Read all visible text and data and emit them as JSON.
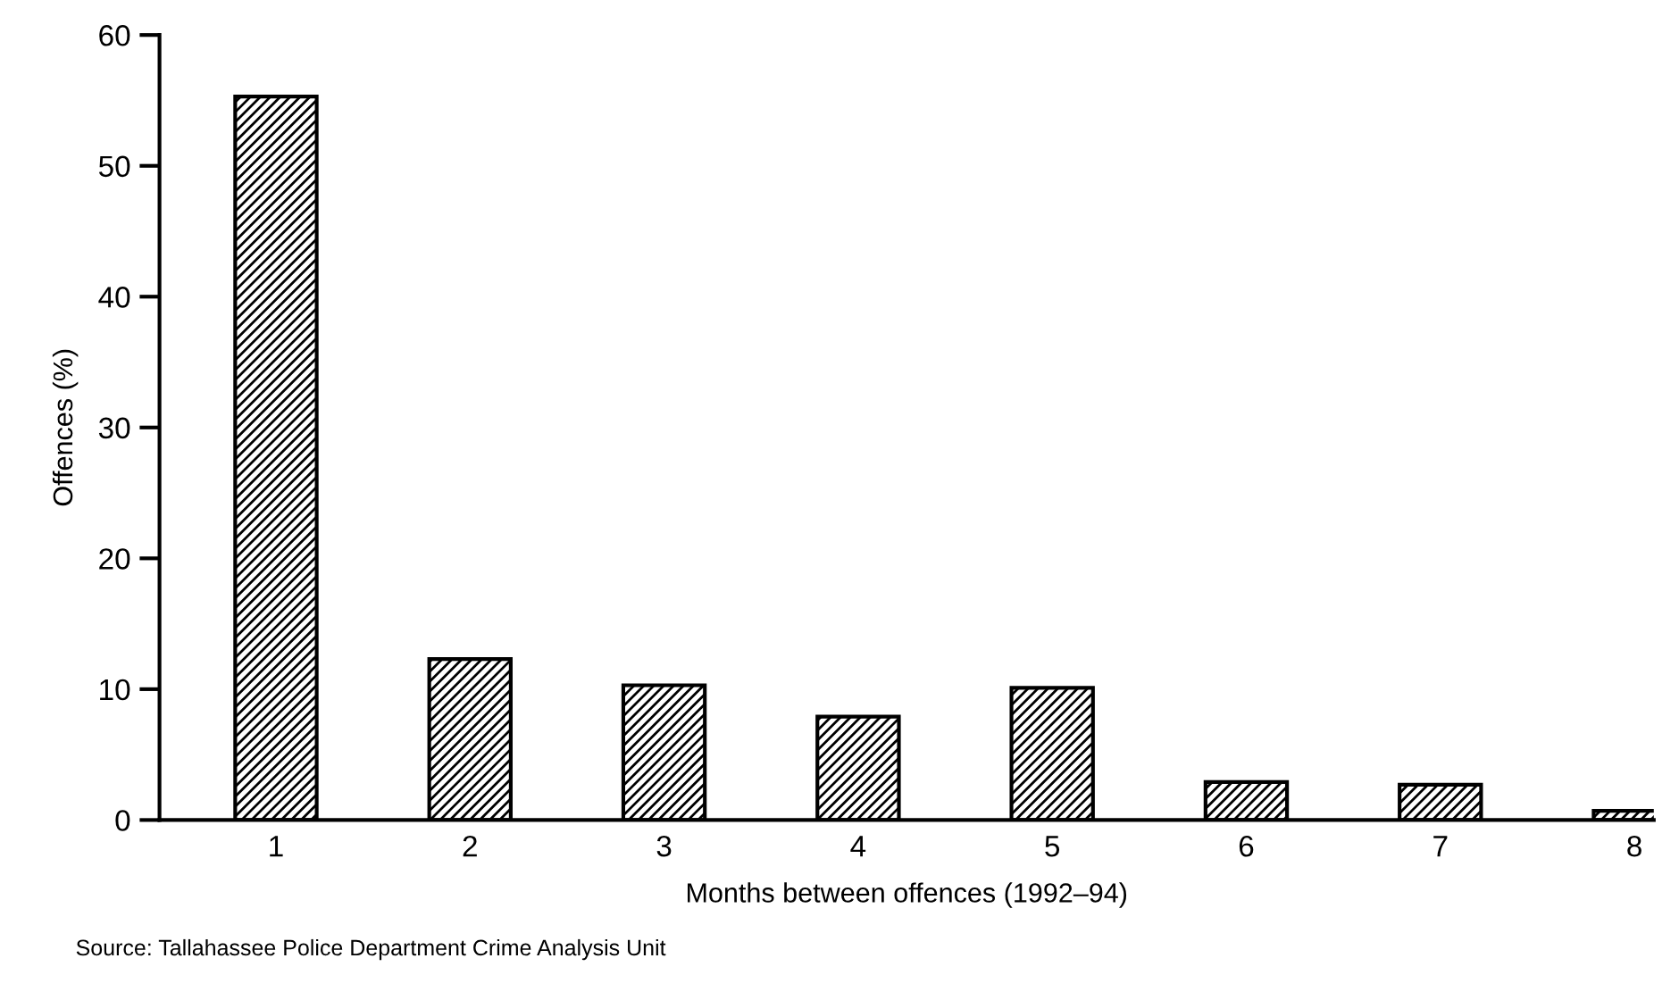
{
  "chart_data": {
    "type": "bar",
    "xlabel": "Months between offences (1992–94)",
    "ylabel": "Offences (%)",
    "categories": [
      "1",
      "2",
      "3",
      "4",
      "5",
      "6",
      "7",
      "8"
    ],
    "values": [
      55.3,
      12.3,
      10.3,
      7.9,
      10.1,
      2.9,
      2.7,
      0.7
    ],
    "color": "#000000",
    "ylim": [
      0,
      60
    ],
    "yticks": [
      0,
      10,
      20,
      30,
      40,
      50,
      60
    ],
    "grid": false,
    "legend": false,
    "annotations": [
      "Source: Tallahassee Police Department Crime Analysis Unit"
    ]
  }
}
